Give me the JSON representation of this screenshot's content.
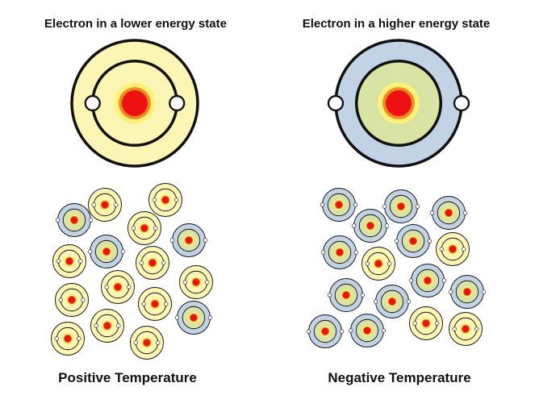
{
  "titles": {
    "lower_state": "Electron in a lower energy state",
    "higher_state": "Electron in a higher energy state",
    "positive": "Positive Temperature",
    "negative": "Negative Temperature"
  },
  "colors": {
    "yellow_shell": "#fbf6b4",
    "blue_shell": "#c2d3e5",
    "green_inner": "#d9e3a3",
    "glow": "#fff27a",
    "nucleus_ring": "#f08a1e",
    "nucleus": "#ee1111",
    "electron": "#ffffff",
    "stroke": "#111111"
  },
  "atoms": {
    "positive": [
      {
        "state": "low"
      },
      {
        "state": "high"
      },
      {
        "state": "low"
      },
      {
        "state": "low"
      },
      {
        "state": "low"
      },
      {
        "state": "high"
      },
      {
        "state": "high"
      },
      {
        "state": "low"
      },
      {
        "state": "low"
      },
      {
        "state": "low"
      },
      {
        "state": "low"
      },
      {
        "state": "low"
      },
      {
        "state": "high"
      },
      {
        "state": "low"
      },
      {
        "state": "low"
      },
      {
        "state": "low"
      },
      {
        "state": "low"
      }
    ],
    "negative": [
      {
        "state": "high"
      },
      {
        "state": "high"
      },
      {
        "state": "high"
      },
      {
        "state": "high"
      },
      {
        "state": "high"
      },
      {
        "state": "high"
      },
      {
        "state": "low"
      },
      {
        "state": "low"
      },
      {
        "state": "high"
      },
      {
        "state": "high"
      },
      {
        "state": "high"
      },
      {
        "state": "high"
      },
      {
        "state": "high"
      },
      {
        "state": "high"
      },
      {
        "state": "low"
      },
      {
        "state": "low"
      }
    ]
  }
}
